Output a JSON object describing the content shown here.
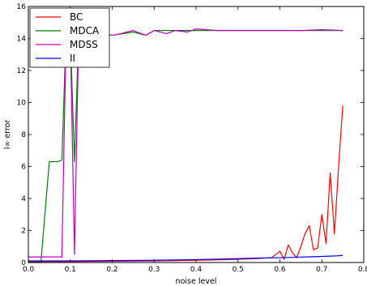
{
  "chart_data": {
    "type": "line",
    "title": "",
    "xlabel": "noise level",
    "ylabel": "l∞ error",
    "xlim": [
      0.0,
      0.8
    ],
    "ylim": [
      0,
      16
    ],
    "xticks": [
      "0.0",
      "0.1",
      "0.2",
      "0.3",
      "0.4",
      "0.5",
      "0.6",
      "0.7",
      "0.8"
    ],
    "yticks": [
      "0",
      "2",
      "4",
      "6",
      "8",
      "10",
      "12",
      "14",
      "16"
    ],
    "grid": false,
    "legend_position": "top-left",
    "series": [
      {
        "name": "BC",
        "color": "#ff0000",
        "x": [
          0.0,
          0.05,
          0.1,
          0.2,
          0.3,
          0.4,
          0.5,
          0.55,
          0.58,
          0.6,
          0.61,
          0.62,
          0.63,
          0.64,
          0.65,
          0.66,
          0.67,
          0.68,
          0.69,
          0.7,
          0.71,
          0.72,
          0.73,
          0.74,
          0.75
        ],
        "y": [
          0.05,
          0.05,
          0.06,
          0.08,
          0.1,
          0.14,
          0.2,
          0.25,
          0.3,
          0.7,
          0.2,
          1.1,
          0.6,
          0.3,
          1.0,
          1.8,
          2.3,
          0.8,
          0.9,
          3.0,
          1.2,
          5.6,
          1.8,
          6.0,
          9.8
        ]
      },
      {
        "name": "MDCA",
        "color": "#008000",
        "x": [
          0.0,
          0.02,
          0.03,
          0.04,
          0.05,
          0.06,
          0.07,
          0.08,
          0.09,
          0.1,
          0.11,
          0.12,
          0.13,
          0.15,
          0.18,
          0.2,
          0.25,
          0.28,
          0.3,
          0.35,
          0.4,
          0.5,
          0.6,
          0.7,
          0.75
        ],
        "y": [
          0.0,
          0.0,
          0.0,
          3.2,
          6.3,
          6.3,
          6.3,
          6.4,
          14.3,
          14.4,
          6.3,
          14.3,
          14.2,
          14.3,
          14.3,
          14.2,
          14.4,
          14.2,
          14.5,
          14.5,
          14.5,
          14.5,
          14.5,
          14.5,
          14.5
        ]
      },
      {
        "name": "MDSS",
        "color": "#bf00bf",
        "x": [
          0.0,
          0.02,
          0.04,
          0.06,
          0.08,
          0.09,
          0.1,
          0.11,
          0.12,
          0.13,
          0.15,
          0.18,
          0.2,
          0.22,
          0.25,
          0.28,
          0.3,
          0.33,
          0.35,
          0.38,
          0.4,
          0.45,
          0.5,
          0.55,
          0.6,
          0.65,
          0.7,
          0.75
        ],
        "y": [
          0.35,
          0.35,
          0.35,
          0.35,
          0.35,
          14.3,
          14.4,
          0.5,
          14.3,
          14.2,
          14.3,
          14.3,
          14.2,
          14.3,
          14.5,
          14.2,
          14.5,
          14.3,
          14.5,
          14.4,
          14.6,
          14.5,
          14.5,
          14.5,
          14.5,
          14.5,
          14.55,
          14.5
        ]
      },
      {
        "name": "II",
        "color": "#0000ff",
        "x": [
          0.0,
          0.1,
          0.2,
          0.3,
          0.4,
          0.5,
          0.55,
          0.6,
          0.65,
          0.7,
          0.72,
          0.74,
          0.75
        ],
        "y": [
          0.1,
          0.1,
          0.12,
          0.14,
          0.18,
          0.24,
          0.28,
          0.3,
          0.34,
          0.38,
          0.4,
          0.42,
          0.45
        ]
      }
    ]
  }
}
